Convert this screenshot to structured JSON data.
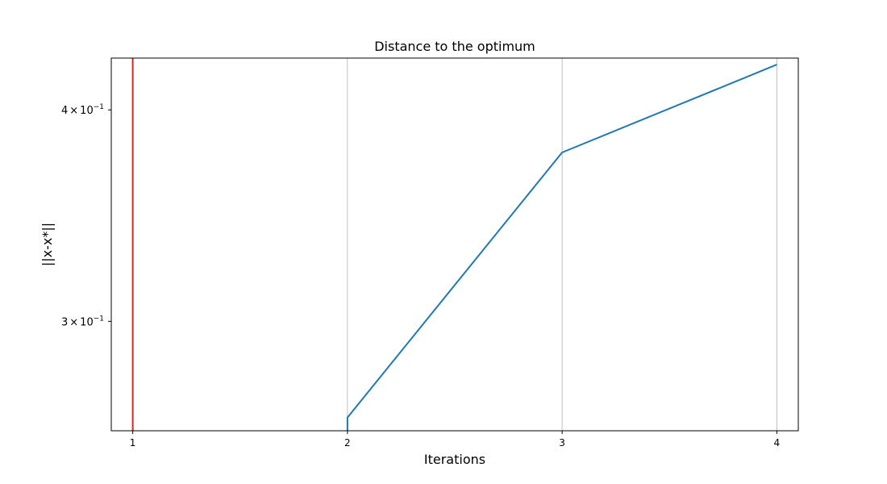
{
  "chart_data": {
    "type": "line",
    "title": "Distance to the optimum",
    "xlabel": "Iterations",
    "ylabel": "||x-x*||",
    "yscale": "log",
    "xlim": [
      0.9,
      4.1
    ],
    "ylim": [
      0.2585,
      0.4292
    ],
    "x_ticks": [
      {
        "value": 1,
        "label": "1"
      },
      {
        "value": 2,
        "label": "2"
      },
      {
        "value": 3,
        "label": "3"
      },
      {
        "value": 4,
        "label": "4"
      }
    ],
    "y_ticks": [
      {
        "value": 0.3,
        "mantissa": "3",
        "times": "×",
        "base": "10",
        "exponent": "−1"
      },
      {
        "value": 0.4,
        "mantissa": "4",
        "times": "×",
        "base": "10",
        "exponent": "−1"
      }
    ],
    "grid": "x-major",
    "series": [
      {
        "color": "#1f77b4",
        "x": [
          2,
          2,
          3,
          4
        ],
        "y": [
          0.2585,
          0.2632,
          0.3775,
          0.4254
        ]
      }
    ],
    "vertical_lines": [
      {
        "x": 1,
        "color": "#d62728"
      }
    ]
  }
}
